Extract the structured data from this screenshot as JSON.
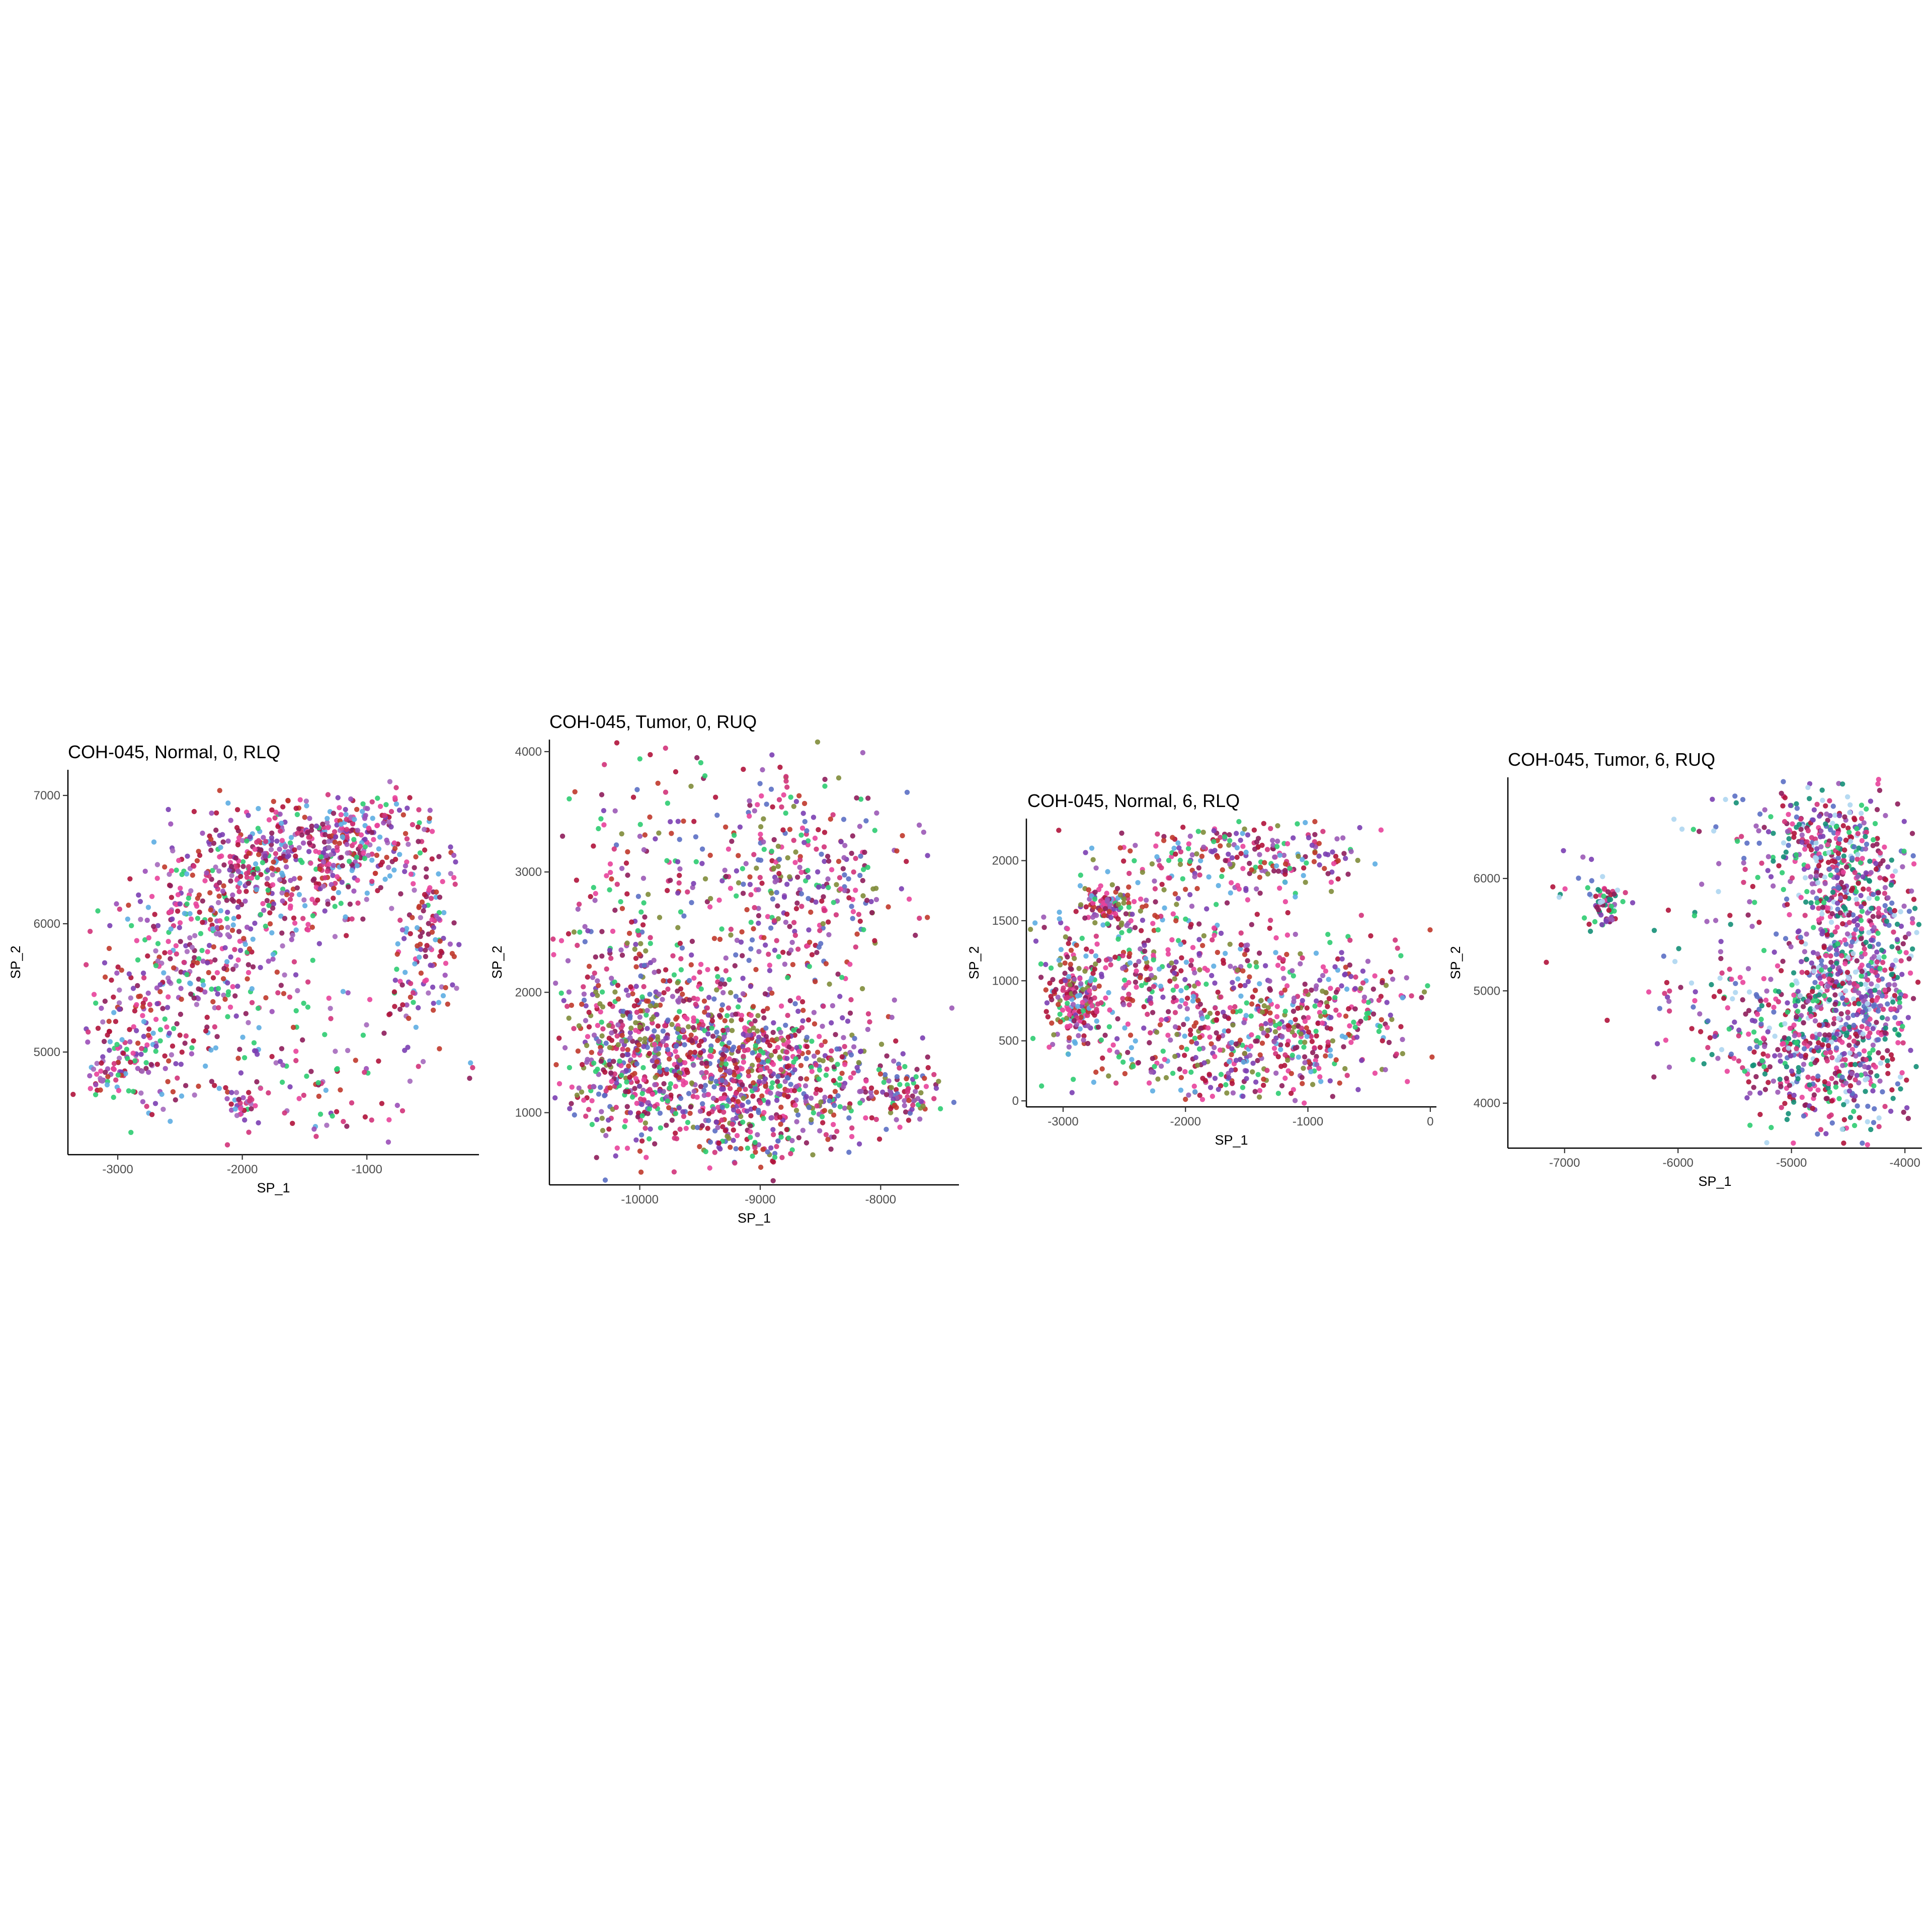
{
  "chart_data": [
    {
      "type": "scatter",
      "title": "COH-045, Normal, 0, RLQ",
      "xlabel": "SP_1",
      "ylabel": "SP_2",
      "xlim": [
        -3400,
        -100
      ],
      "ylim": [
        4200,
        7200
      ],
      "x_ticks": [
        -3000,
        -2000,
        -1000
      ],
      "y_ticks": [
        5000,
        6000,
        7000
      ],
      "x_tick_labels": [
        "-3000",
        "-2000",
        "-1000"
      ],
      "y_tick_labels": [
        "5000",
        "6000",
        "7000"
      ],
      "point_colors": [
        "#7b3fb3",
        "#e8429b",
        "#b0133b",
        "#8e1d5b",
        "#d1337a",
        "#9b4fb8",
        "#2ecc71",
        "#5dade2",
        "#c0392b",
        "#a569bd"
      ],
      "clusters": [
        {
          "cx": -1500,
          "cy": 6600,
          "sx": 450,
          "sy": 180,
          "n": 340
        },
        {
          "cx": -2000,
          "cy": 6200,
          "sx": 500,
          "sy": 220,
          "n": 300
        },
        {
          "cx": -2300,
          "cy": 5700,
          "sx": 300,
          "sy": 250,
          "n": 120
        },
        {
          "cx": -2800,
          "cy": 5100,
          "sx": 250,
          "sy": 280,
          "n": 130
        },
        {
          "cx": -3100,
          "cy": 4850,
          "sx": 120,
          "sy": 120,
          "n": 50
        },
        {
          "cx": -500,
          "cy": 5800,
          "sx": 150,
          "sy": 450,
          "n": 140
        },
        {
          "cx": -1000,
          "cy": 6700,
          "sx": 200,
          "sy": 150,
          "n": 80
        },
        {
          "cx": -1900,
          "cy": 5100,
          "sx": 600,
          "sy": 400,
          "n": 120
        },
        {
          "cx": -2000,
          "cy": 4600,
          "sx": 60,
          "sy": 60,
          "n": 30
        },
        {
          "cx": -1300,
          "cy": 4700,
          "sx": 400,
          "sy": 200,
          "n": 40
        }
      ]
    },
    {
      "type": "scatter",
      "title": "COH-045, Tumor, 0, RUQ",
      "xlabel": "SP_1",
      "ylabel": "SP_2",
      "xlim": [
        -10750,
        -7350
      ],
      "ylim": [
        400,
        4100
      ],
      "x_ticks": [
        -10000,
        -9000,
        -8000
      ],
      "y_ticks": [
        1000,
        2000,
        3000,
        4000
      ],
      "x_tick_labels": [
        "-10000",
        "-9000",
        "-8000"
      ],
      "y_tick_labels": [
        "1000",
        "2000",
        "3000",
        "4000"
      ],
      "point_colors": [
        "#7b3fb3",
        "#b0133b",
        "#8e1d5b",
        "#e8429b",
        "#9b59b6",
        "#5b6fc4",
        "#c0392b",
        "#d1337a",
        "#2ecc71",
        "#7f8c3a"
      ],
      "clusters": [
        {
          "cx": -9500,
          "cy": 1400,
          "sx": 550,
          "sy": 350,
          "n": 700
        },
        {
          "cx": -8700,
          "cy": 1300,
          "sx": 400,
          "sy": 250,
          "n": 260
        },
        {
          "cx": -10100,
          "cy": 1600,
          "sx": 250,
          "sy": 400,
          "n": 220
        },
        {
          "cx": -7800,
          "cy": 1150,
          "sx": 150,
          "sy": 120,
          "n": 90
        },
        {
          "cx": -8600,
          "cy": 2900,
          "sx": 400,
          "sy": 400,
          "n": 230
        },
        {
          "cx": -9500,
          "cy": 3300,
          "sx": 600,
          "sy": 400,
          "n": 130
        },
        {
          "cx": -10200,
          "cy": 2400,
          "sx": 250,
          "sy": 500,
          "n": 70
        },
        {
          "cx": -9200,
          "cy": 2200,
          "sx": 700,
          "sy": 400,
          "n": 120
        },
        {
          "cx": -9100,
          "cy": 800,
          "sx": 300,
          "sy": 150,
          "n": 80
        }
      ]
    },
    {
      "type": "scatter",
      "title": "COH-045, Normal, 6, RLQ",
      "xlabel": "SP_1",
      "ylabel": "SP_2",
      "xlim": [
        -3300,
        50
      ],
      "ylim": [
        -50,
        2350
      ],
      "x_ticks": [
        -3000,
        -2000,
        -1000,
        0
      ],
      "y_ticks": [
        0,
        500,
        1000,
        1500,
        2000
      ],
      "x_tick_labels": [
        "-3000",
        "-2000",
        "-1000",
        "0"
      ],
      "y_tick_labels": [
        "0",
        "500",
        "1000",
        "1500",
        "2000"
      ],
      "point_colors": [
        "#7b3fb3",
        "#c0392b",
        "#b0133b",
        "#8e1d5b",
        "#e8429b",
        "#9b59b6",
        "#5dade2",
        "#2ecc71",
        "#7f8c3a",
        "#d1337a"
      ],
      "clusters": [
        {
          "cx": -1500,
          "cy": 2050,
          "sx": 450,
          "sy": 150,
          "n": 220
        },
        {
          "cx": -2900,
          "cy": 850,
          "sx": 120,
          "sy": 180,
          "n": 160
        },
        {
          "cx": -2650,
          "cy": 1650,
          "sx": 80,
          "sy": 80,
          "n": 90
        },
        {
          "cx": -1200,
          "cy": 550,
          "sx": 300,
          "sy": 250,
          "n": 200
        },
        {
          "cx": -2000,
          "cy": 900,
          "sx": 600,
          "sy": 450,
          "n": 350
        },
        {
          "cx": -600,
          "cy": 800,
          "sx": 350,
          "sy": 300,
          "n": 150
        },
        {
          "cx": -2500,
          "cy": 1200,
          "sx": 400,
          "sy": 400,
          "n": 150
        },
        {
          "cx": -1700,
          "cy": 250,
          "sx": 500,
          "sy": 120,
          "n": 80
        }
      ]
    },
    {
      "type": "scatter",
      "title": "COH-045, Tumor, 6, RUQ",
      "xlabel": "SP_1",
      "ylabel": "SP_2",
      "xlim": [
        -7500,
        -3850
      ],
      "ylim": [
        3600,
        6900
      ],
      "x_ticks": [
        -7000,
        -6000,
        -5000,
        -4000
      ],
      "y_ticks": [
        4000,
        5000,
        6000
      ],
      "x_tick_labels": [
        "-7000",
        "-6000",
        "-5000",
        "-4000"
      ],
      "y_tick_labels": [
        "4000",
        "5000",
        "6000"
      ],
      "point_colors": [
        "#e8429b",
        "#8e1d5b",
        "#b0133b",
        "#2ecc71",
        "#7b3fb3",
        "#aed6f1",
        "#d1337a",
        "#148f77",
        "#5b6fc4",
        "#9b59b6"
      ],
      "clusters": [
        {
          "cx": -4450,
          "cy": 5100,
          "sx": 280,
          "sy": 700,
          "n": 900
        },
        {
          "cx": -4700,
          "cy": 6300,
          "sx": 250,
          "sy": 250,
          "n": 200
        },
        {
          "cx": -5000,
          "cy": 4500,
          "sx": 300,
          "sy": 350,
          "n": 220
        },
        {
          "cx": -6650,
          "cy": 5750,
          "sx": 70,
          "sy": 90,
          "n": 60
        },
        {
          "cx": -5600,
          "cy": 5000,
          "sx": 400,
          "sy": 400,
          "n": 90
        },
        {
          "cx": -5300,
          "cy": 6300,
          "sx": 400,
          "sy": 300,
          "n": 50
        },
        {
          "cx": -7000,
          "cy": 6100,
          "sx": 200,
          "sy": 150,
          "n": 12
        }
      ]
    }
  ]
}
